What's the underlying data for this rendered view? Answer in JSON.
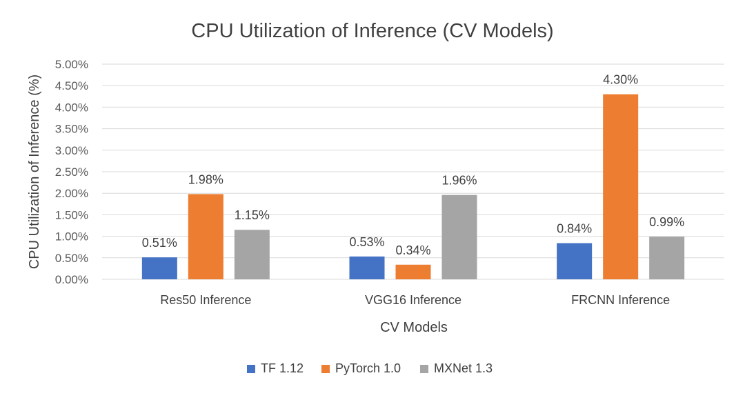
{
  "chart_data": {
    "type": "bar",
    "title": "CPU Utilization of Inference (CV Models)",
    "xlabel": "CV Models",
    "ylabel": "CPU Utilization of Inference (%)",
    "categories": [
      "Res50 Inference",
      "VGG16 Inference",
      "FRCNN Inference"
    ],
    "ylim": [
      0,
      5
    ],
    "yticks": [
      0,
      0.5,
      1,
      1.5,
      2,
      2.5,
      3,
      3.5,
      4,
      4.5,
      5
    ],
    "ytick_labels": [
      "0.00%",
      "0.50%",
      "1.00%",
      "1.50%",
      "2.00%",
      "2.50%",
      "3.00%",
      "3.50%",
      "4.00%",
      "4.50%",
      "5.00%"
    ],
    "grid": true,
    "legend_position": "bottom",
    "series": [
      {
        "name": "TF 1.12",
        "color": "#4472c4",
        "values": [
          0.51,
          0.53,
          0.84
        ],
        "labels": [
          "0.51%",
          "0.53%",
          "0.84%"
        ]
      },
      {
        "name": "PyTorch 1.0",
        "color": "#ed7d31",
        "values": [
          1.98,
          0.34,
          4.3
        ],
        "labels": [
          "1.98%",
          "0.34%",
          "4.30%"
        ]
      },
      {
        "name": "MXNet 1.3",
        "color": "#a5a5a5",
        "values": [
          1.15,
          1.96,
          0.99
        ],
        "labels": [
          "1.15%",
          "1.96%",
          "0.99%"
        ]
      }
    ]
  }
}
